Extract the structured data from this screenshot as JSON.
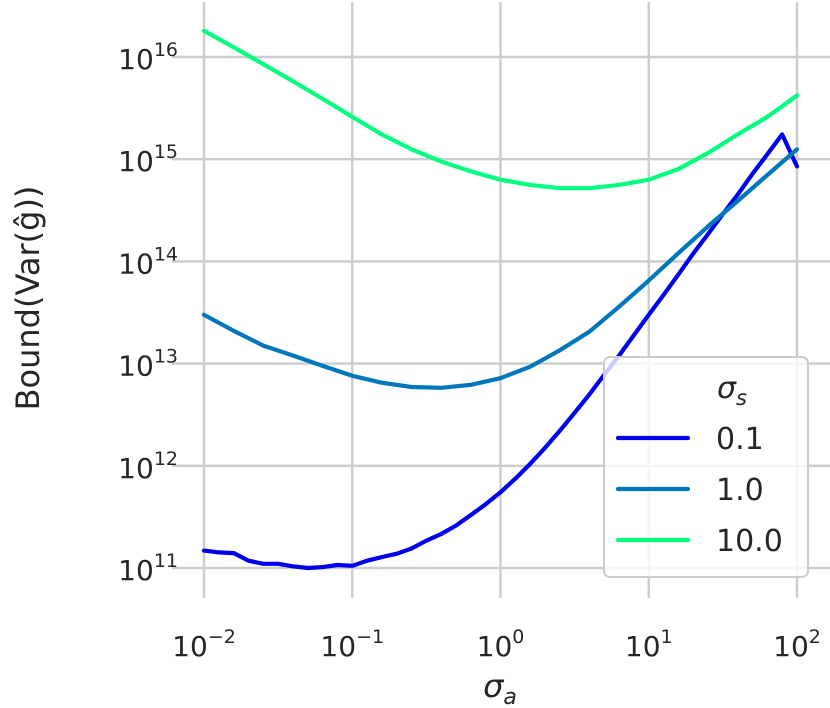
{
  "chart_data": {
    "type": "line",
    "x_scale": "log",
    "y_scale": "log",
    "xlabel": "σ",
    "xlabel_sub": "a",
    "ylabel": "Bound(Var(ĝ))",
    "xlim": [
      0.01,
      100
    ],
    "ylim": [
      100000000000.0,
      1e+16
    ],
    "x_ticks": [
      {
        "base": "10",
        "exp": "−2"
      },
      {
        "base": "10",
        "exp": "−1"
      },
      {
        "base": "10",
        "exp": "0"
      },
      {
        "base": "10",
        "exp": "1"
      },
      {
        "base": "10",
        "exp": "2"
      }
    ],
    "y_ticks": [
      {
        "base": "10",
        "exp": "11"
      },
      {
        "base": "10",
        "exp": "12"
      },
      {
        "base": "10",
        "exp": "13"
      },
      {
        "base": "10",
        "exp": "14"
      },
      {
        "base": "10",
        "exp": "15"
      },
      {
        "base": "10",
        "exp": "16"
      }
    ],
    "grid": true,
    "legend": {
      "title": "σ",
      "title_sub": "s",
      "placement": "lower-right"
    },
    "series": [
      {
        "name": "0.1",
        "color": "#0000ee",
        "x": [
          0.01,
          0.0126,
          0.0159,
          0.02,
          0.0251,
          0.0316,
          0.0398,
          0.0501,
          0.0631,
          0.0794,
          0.1,
          0.126,
          0.159,
          0.2,
          0.251,
          0.316,
          0.398,
          0.501,
          0.631,
          0.794,
          1.0,
          1.26,
          1.59,
          2.0,
          2.51,
          3.16,
          3.98,
          5.01,
          6.31,
          7.94,
          10,
          12.6,
          15.9,
          20,
          25.1,
          31.6,
          39.8,
          50.1,
          63.1,
          79.4,
          100
        ],
        "y": [
          148000000000.0,
          142000000000.0,
          140000000000.0,
          118000000000.0,
          110000000000.0,
          110000000000.0,
          104000000000.0,
          100000000000.0,
          102000000000.0,
          107000000000.0,
          105000000000.0,
          118000000000.0,
          128000000000.0,
          138000000000.0,
          155000000000.0,
          185000000000.0,
          215000000000.0,
          260000000000.0,
          330000000000.0,
          420000000000.0,
          550000000000.0,
          750000000000.0,
          1050000000000.0,
          1500000000000.0,
          2200000000000.0,
          3300000000000.0,
          5000000000000.0,
          7800000000000.0,
          12000000000000.0,
          19000000000000.0,
          30000000000000.0,
          47000000000000.0,
          75000000000000.0,
          120000000000000.0,
          185000000000000.0,
          290000000000000.0,
          450000000000000.0,
          720000000000000.0,
          1120000000000000.0,
          1750000000000000.0,
          850000000000000.0
        ]
      },
      {
        "name": "1.0",
        "color": "#0077bb",
        "x": [
          0.01,
          0.0158,
          0.0251,
          0.0398,
          0.0631,
          0.1,
          0.158,
          0.251,
          0.398,
          0.631,
          1.0,
          1.58,
          2.51,
          3.98,
          6.31,
          10,
          15.8,
          25.1,
          39.8,
          63.1,
          100
        ],
        "y": [
          30000000000000.0,
          21000000000000.0,
          15000000000000.0,
          12000000000000.0,
          9500000000000.0,
          7600000000000.0,
          6500000000000.0,
          5900000000000.0,
          5800000000000.0,
          6200000000000.0,
          7200000000000.0,
          9300000000000.0,
          13500000000000.0,
          20500000000000.0,
          36000000000000.0,
          65000000000000.0,
          120000000000000.0,
          220000000000000.0,
          390000000000000.0,
          700000000000000.0,
          1250000000000000.0
        ]
      },
      {
        "name": "10.0",
        "color": "#00ff7f",
        "x": [
          0.01,
          0.0158,
          0.0251,
          0.0398,
          0.0631,
          0.1,
          0.158,
          0.251,
          0.398,
          0.631,
          1.0,
          1.58,
          2.51,
          3.98,
          6.31,
          10,
          15.8,
          25.1,
          39.8,
          63.1,
          100
        ],
        "y": [
          1.8e+16,
          1.25e+16,
          8500000000000000.0,
          5800000000000000.0,
          3900000000000000.0,
          2600000000000000.0,
          1750000000000000.0,
          1250000000000000.0,
          950000000000000.0,
          760000000000000.0,
          630000000000000.0,
          560000000000000.0,
          520000000000000.0,
          520000000000000.0,
          560000000000000.0,
          630000000000000.0,
          800000000000000.0,
          1150000000000000.0,
          1750000000000000.0,
          2600000000000000.0,
          4200000000000000.0
        ]
      }
    ]
  }
}
